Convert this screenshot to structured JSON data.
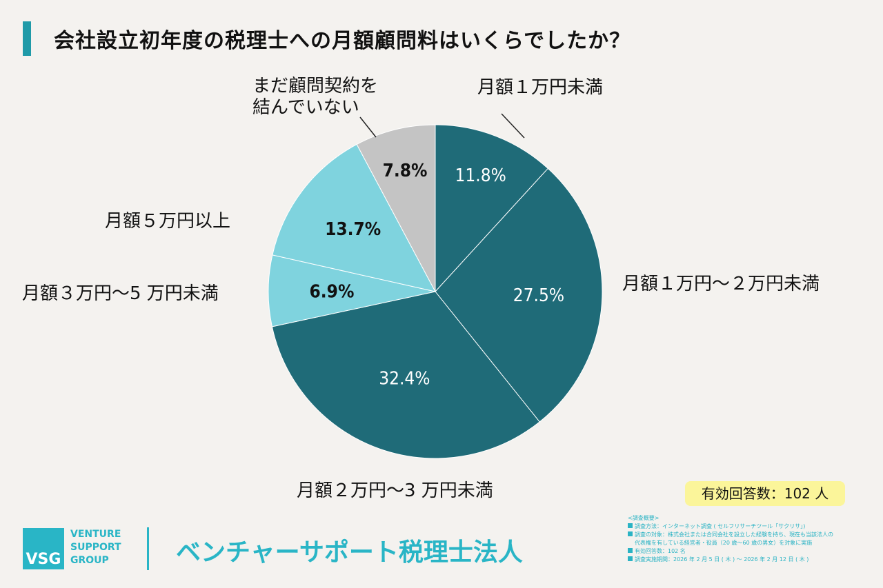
{
  "title": "会社設立初年度の税理士への月額顧問料はいくらでしたか？",
  "chart_data": {
    "type": "pie",
    "title": "会社設立初年度の税理士への月額顧問料はいくらでしたか？",
    "start": "top",
    "direction": "clockwise",
    "slices": [
      {
        "label": "月額１万円未満",
        "value": 11.8,
        "display": "11.8%",
        "color": "#1f6b78",
        "text_color": "#ffffff"
      },
      {
        "label": "月額１万円〜２万円未満",
        "value": 27.5,
        "display": "27.5%",
        "color": "#1f6b78",
        "text_color": "#ffffff"
      },
      {
        "label": "月額２万円〜3 万円未満",
        "value": 32.4,
        "display": "32.4%",
        "color": "#1f6b78",
        "text_color": "#ffffff"
      },
      {
        "label": "月額３万円〜5 万円未満",
        "value": 6.9,
        "display": "6.9%",
        "color": "#7fd3de",
        "text_color": "#111111"
      },
      {
        "label": "月額５万円以上",
        "value": 13.7,
        "display": "13.7%",
        "color": "#7fd3de",
        "text_color": "#111111"
      },
      {
        "label": "まだ顧問契約を結んでいない",
        "label_lines": [
          "まだ顧問契約を",
          "結んでいない"
        ],
        "value": 7.8,
        "display": "7.8%",
        "color": "#c4c4c4",
        "text_color": "#111111"
      }
    ]
  },
  "responses_badge": "有効回答数：102 人",
  "logo": {
    "mark": "VSG",
    "words": [
      "VENTURE",
      "SUPPORT",
      "GROUP"
    ]
  },
  "company": "ベンチャーサポート税理士法人",
  "survey": {
    "heading": "<調査概要>",
    "items": [
      "調査方法：インターネット調査 ( セルフリサーチツール「サクリサ」)",
      "調査の対象：株式会社または合同会社を設立した経験を持ち、現在も当該法人の",
      "有効回答数：102 名",
      "調査実施期間：2026 年 2 月 5 日 ( 木 ) 〜 2026 年 2 月 12 日 ( 木 )"
    ],
    "item1_cont": "代表権を有している経営者・役員（20 歳〜60 歳の男女）を対象に実施"
  },
  "accent": "#29b5c6"
}
